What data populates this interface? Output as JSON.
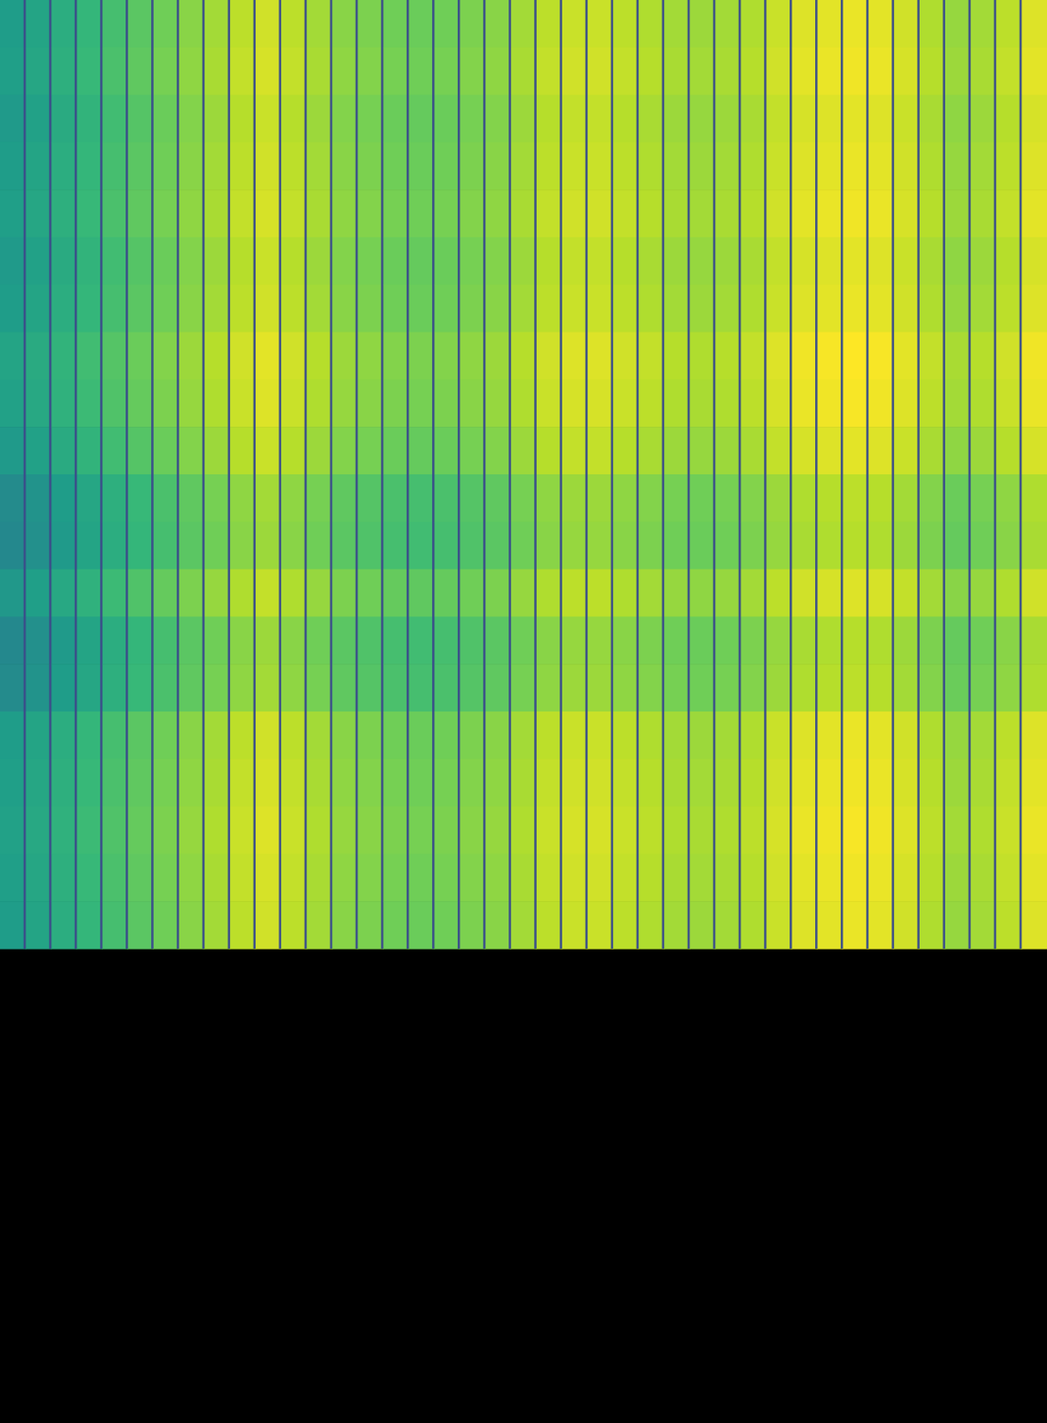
{
  "chart_data": {
    "type": "heatmap",
    "tick_labels": false,
    "color_range": [
      0,
      1
    ],
    "cells": [
      [
        0.55,
        0.58,
        0.62,
        0.66,
        0.7,
        0.74,
        0.78,
        0.82,
        0.86,
        0.9,
        0.93,
        0.9,
        0.86,
        0.82,
        0.8,
        0.78,
        0.77,
        0.78,
        0.8,
        0.82,
        0.86,
        0.9,
        0.92,
        0.92,
        0.9,
        0.88,
        0.86,
        0.85,
        0.86,
        0.88,
        0.92,
        0.95,
        0.96,
        0.97,
        0.96,
        0.93,
        0.88,
        0.84,
        0.86,
        0.9,
        0.95
      ],
      [
        0.56,
        0.59,
        0.63,
        0.67,
        0.71,
        0.75,
        0.79,
        0.83,
        0.87,
        0.91,
        0.94,
        0.91,
        0.87,
        0.83,
        0.81,
        0.79,
        0.78,
        0.79,
        0.81,
        0.83,
        0.87,
        0.91,
        0.93,
        0.93,
        0.91,
        0.89,
        0.87,
        0.86,
        0.87,
        0.89,
        0.93,
        0.96,
        0.97,
        0.98,
        0.97,
        0.94,
        0.89,
        0.85,
        0.87,
        0.91,
        0.96
      ],
      [
        0.54,
        0.57,
        0.61,
        0.65,
        0.69,
        0.73,
        0.77,
        0.81,
        0.85,
        0.89,
        0.92,
        0.89,
        0.85,
        0.81,
        0.79,
        0.77,
        0.76,
        0.77,
        0.79,
        0.81,
        0.85,
        0.89,
        0.91,
        0.91,
        0.89,
        0.87,
        0.85,
        0.84,
        0.85,
        0.87,
        0.91,
        0.94,
        0.95,
        0.96,
        0.95,
        0.92,
        0.87,
        0.83,
        0.85,
        0.89,
        0.94
      ],
      [
        0.55,
        0.58,
        0.62,
        0.66,
        0.7,
        0.74,
        0.78,
        0.82,
        0.86,
        0.9,
        0.93,
        0.9,
        0.86,
        0.82,
        0.8,
        0.78,
        0.77,
        0.78,
        0.8,
        0.82,
        0.86,
        0.9,
        0.92,
        0.92,
        0.9,
        0.88,
        0.86,
        0.85,
        0.86,
        0.88,
        0.92,
        0.95,
        0.96,
        0.97,
        0.96,
        0.93,
        0.88,
        0.84,
        0.86,
        0.9,
        0.95
      ],
      [
        0.56,
        0.59,
        0.63,
        0.67,
        0.71,
        0.75,
        0.79,
        0.83,
        0.87,
        0.91,
        0.94,
        0.91,
        0.87,
        0.83,
        0.81,
        0.79,
        0.78,
        0.79,
        0.81,
        0.83,
        0.87,
        0.91,
        0.93,
        0.93,
        0.91,
        0.89,
        0.87,
        0.86,
        0.87,
        0.89,
        0.93,
        0.96,
        0.97,
        0.98,
        0.97,
        0.94,
        0.89,
        0.85,
        0.87,
        0.91,
        0.96
      ],
      [
        0.54,
        0.57,
        0.61,
        0.65,
        0.69,
        0.73,
        0.77,
        0.81,
        0.85,
        0.89,
        0.92,
        0.89,
        0.85,
        0.81,
        0.79,
        0.77,
        0.76,
        0.77,
        0.79,
        0.81,
        0.85,
        0.89,
        0.91,
        0.91,
        0.89,
        0.87,
        0.85,
        0.84,
        0.85,
        0.87,
        0.91,
        0.94,
        0.95,
        0.96,
        0.95,
        0.92,
        0.87,
        0.83,
        0.85,
        0.89,
        0.94
      ],
      [
        0.55,
        0.58,
        0.62,
        0.66,
        0.7,
        0.74,
        0.78,
        0.82,
        0.86,
        0.9,
        0.93,
        0.9,
        0.86,
        0.82,
        0.8,
        0.78,
        0.77,
        0.78,
        0.8,
        0.82,
        0.86,
        0.9,
        0.92,
        0.92,
        0.9,
        0.88,
        0.86,
        0.85,
        0.86,
        0.88,
        0.92,
        0.95,
        0.96,
        0.97,
        0.96,
        0.93,
        0.88,
        0.84,
        0.86,
        0.9,
        0.95
      ],
      [
        0.58,
        0.61,
        0.65,
        0.69,
        0.73,
        0.77,
        0.81,
        0.85,
        0.89,
        0.93,
        0.96,
        0.93,
        0.89,
        0.85,
        0.83,
        0.81,
        0.8,
        0.81,
        0.83,
        0.85,
        0.89,
        0.93,
        0.95,
        0.95,
        0.93,
        0.91,
        0.89,
        0.88,
        0.89,
        0.91,
        0.95,
        0.98,
        0.99,
        1.0,
        0.99,
        0.96,
        0.91,
        0.87,
        0.89,
        0.93,
        0.98
      ],
      [
        0.57,
        0.6,
        0.64,
        0.68,
        0.72,
        0.76,
        0.8,
        0.84,
        0.88,
        0.92,
        0.95,
        0.92,
        0.88,
        0.84,
        0.82,
        0.8,
        0.79,
        0.8,
        0.82,
        0.84,
        0.88,
        0.92,
        0.94,
        0.94,
        0.92,
        0.9,
        0.88,
        0.87,
        0.88,
        0.9,
        0.94,
        0.97,
        0.98,
        0.99,
        0.98,
        0.95,
        0.9,
        0.86,
        0.88,
        0.92,
        0.97
      ],
      [
        0.54,
        0.57,
        0.61,
        0.65,
        0.69,
        0.73,
        0.77,
        0.81,
        0.85,
        0.89,
        0.92,
        0.89,
        0.85,
        0.81,
        0.79,
        0.77,
        0.76,
        0.77,
        0.79,
        0.81,
        0.85,
        0.89,
        0.91,
        0.91,
        0.89,
        0.87,
        0.85,
        0.84,
        0.85,
        0.87,
        0.91,
        0.94,
        0.95,
        0.96,
        0.95,
        0.92,
        0.87,
        0.83,
        0.85,
        0.89,
        0.94
      ],
      [
        0.48,
        0.51,
        0.55,
        0.59,
        0.63,
        0.67,
        0.71,
        0.75,
        0.79,
        0.83,
        0.86,
        0.83,
        0.79,
        0.75,
        0.73,
        0.71,
        0.7,
        0.71,
        0.73,
        0.75,
        0.79,
        0.83,
        0.85,
        0.85,
        0.83,
        0.81,
        0.79,
        0.78,
        0.79,
        0.81,
        0.85,
        0.88,
        0.89,
        0.9,
        0.89,
        0.86,
        0.81,
        0.77,
        0.79,
        0.83,
        0.88
      ],
      [
        0.47,
        0.5,
        0.54,
        0.58,
        0.62,
        0.66,
        0.7,
        0.74,
        0.78,
        0.82,
        0.85,
        0.82,
        0.78,
        0.74,
        0.72,
        0.7,
        0.69,
        0.7,
        0.72,
        0.74,
        0.78,
        0.82,
        0.84,
        0.84,
        0.82,
        0.8,
        0.78,
        0.77,
        0.78,
        0.8,
        0.84,
        0.87,
        0.88,
        0.89,
        0.88,
        0.85,
        0.8,
        0.76,
        0.78,
        0.82,
        0.87
      ],
      [
        0.53,
        0.56,
        0.6,
        0.64,
        0.68,
        0.72,
        0.76,
        0.8,
        0.84,
        0.88,
        0.91,
        0.88,
        0.84,
        0.8,
        0.78,
        0.76,
        0.75,
        0.76,
        0.78,
        0.8,
        0.84,
        0.88,
        0.9,
        0.9,
        0.88,
        0.86,
        0.84,
        0.83,
        0.84,
        0.86,
        0.9,
        0.93,
        0.94,
        0.95,
        0.94,
        0.91,
        0.86,
        0.82,
        0.84,
        0.88,
        0.93
      ],
      [
        0.47,
        0.5,
        0.54,
        0.58,
        0.62,
        0.66,
        0.7,
        0.74,
        0.78,
        0.82,
        0.85,
        0.82,
        0.78,
        0.74,
        0.72,
        0.7,
        0.69,
        0.7,
        0.72,
        0.74,
        0.78,
        0.82,
        0.84,
        0.84,
        0.82,
        0.8,
        0.78,
        0.77,
        0.78,
        0.8,
        0.84,
        0.87,
        0.88,
        0.89,
        0.88,
        0.85,
        0.8,
        0.76,
        0.78,
        0.82,
        0.87
      ],
      [
        0.48,
        0.51,
        0.55,
        0.59,
        0.63,
        0.67,
        0.71,
        0.75,
        0.79,
        0.83,
        0.86,
        0.83,
        0.79,
        0.75,
        0.73,
        0.71,
        0.7,
        0.71,
        0.73,
        0.75,
        0.79,
        0.83,
        0.85,
        0.85,
        0.83,
        0.81,
        0.79,
        0.78,
        0.79,
        0.81,
        0.85,
        0.88,
        0.89,
        0.9,
        0.89,
        0.86,
        0.81,
        0.77,
        0.79,
        0.83,
        0.88
      ],
      [
        0.55,
        0.58,
        0.62,
        0.66,
        0.7,
        0.74,
        0.78,
        0.82,
        0.86,
        0.9,
        0.93,
        0.9,
        0.86,
        0.82,
        0.8,
        0.78,
        0.77,
        0.78,
        0.8,
        0.82,
        0.86,
        0.9,
        0.92,
        0.92,
        0.9,
        0.88,
        0.86,
        0.85,
        0.86,
        0.88,
        0.92,
        0.95,
        0.96,
        0.97,
        0.96,
        0.93,
        0.88,
        0.84,
        0.86,
        0.9,
        0.95
      ],
      [
        0.56,
        0.59,
        0.63,
        0.67,
        0.71,
        0.75,
        0.79,
        0.83,
        0.87,
        0.91,
        0.94,
        0.91,
        0.87,
        0.83,
        0.81,
        0.79,
        0.78,
        0.79,
        0.81,
        0.83,
        0.87,
        0.91,
        0.93,
        0.93,
        0.91,
        0.89,
        0.87,
        0.86,
        0.87,
        0.89,
        0.93,
        0.96,
        0.97,
        0.98,
        0.97,
        0.94,
        0.89,
        0.85,
        0.87,
        0.91,
        0.96
      ],
      [
        0.57,
        0.6,
        0.64,
        0.68,
        0.72,
        0.76,
        0.8,
        0.84,
        0.88,
        0.92,
        0.95,
        0.92,
        0.88,
        0.84,
        0.82,
        0.8,
        0.79,
        0.8,
        0.82,
        0.84,
        0.88,
        0.92,
        0.94,
        0.94,
        0.92,
        0.9,
        0.88,
        0.87,
        0.88,
        0.9,
        0.94,
        0.97,
        0.98,
        0.99,
        0.98,
        0.95,
        0.9,
        0.86,
        0.88,
        0.92,
        0.97
      ],
      [
        0.56,
        0.59,
        0.63,
        0.67,
        0.71,
        0.75,
        0.79,
        0.83,
        0.87,
        0.91,
        0.94,
        0.91,
        0.87,
        0.83,
        0.81,
        0.79,
        0.78,
        0.79,
        0.81,
        0.83,
        0.87,
        0.91,
        0.93,
        0.93,
        0.91,
        0.89,
        0.87,
        0.86,
        0.87,
        0.89,
        0.93,
        0.96,
        0.97,
        0.98,
        0.97,
        0.94,
        0.89,
        0.85,
        0.87,
        0.91,
        0.96
      ],
      [
        0.55,
        0.58,
        0.62,
        0.66,
        0.7,
        0.74,
        0.78,
        0.82,
        0.86,
        0.9,
        0.93,
        0.9,
        0.86,
        0.82,
        0.8,
        0.78,
        0.77,
        0.78,
        0.8,
        0.82,
        0.86,
        0.9,
        0.92,
        0.92,
        0.9,
        0.88,
        0.86,
        0.85,
        0.86,
        0.88,
        0.92,
        0.95,
        0.96,
        0.97,
        0.96,
        0.93,
        0.88,
        0.84,
        0.86,
        0.9,
        0.95
      ]
    ]
  }
}
